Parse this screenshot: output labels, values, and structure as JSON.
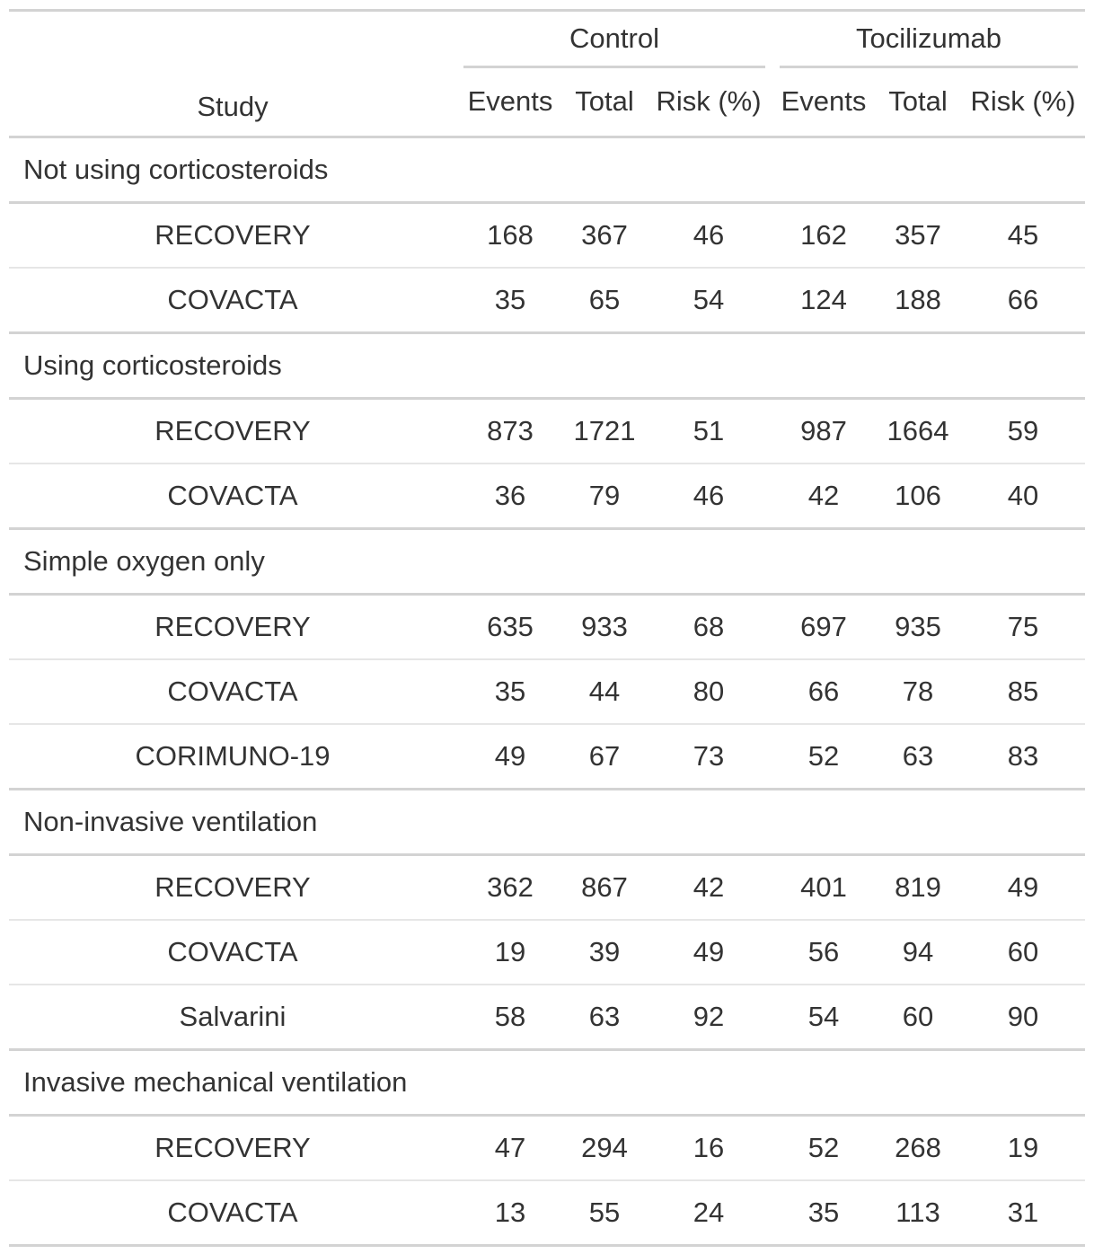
{
  "header": {
    "study_label": "Study",
    "spanners": [
      {
        "label": "Control"
      },
      {
        "label": "Tocilizumab"
      }
    ],
    "columns": [
      "Events",
      "Total",
      "Risk (%)",
      "Events",
      "Total",
      "Risk (%)"
    ]
  },
  "groups": [
    {
      "label": "Not using corticosteroids",
      "rows": [
        {
          "study": "RECOVERY",
          "c_events": "168",
          "c_total": "367",
          "c_risk": "46",
          "t_events": "162",
          "t_total": "357",
          "t_risk": "45"
        },
        {
          "study": "COVACTA",
          "c_events": "35",
          "c_total": "65",
          "c_risk": "54",
          "t_events": "124",
          "t_total": "188",
          "t_risk": "66"
        }
      ]
    },
    {
      "label": "Using corticosteroids",
      "rows": [
        {
          "study": "RECOVERY",
          "c_events": "873",
          "c_total": "1721",
          "c_risk": "51",
          "t_events": "987",
          "t_total": "1664",
          "t_risk": "59"
        },
        {
          "study": "COVACTA",
          "c_events": "36",
          "c_total": "79",
          "c_risk": "46",
          "t_events": "42",
          "t_total": "106",
          "t_risk": "40"
        }
      ]
    },
    {
      "label": "Simple oxygen only",
      "rows": [
        {
          "study": "RECOVERY",
          "c_events": "635",
          "c_total": "933",
          "c_risk": "68",
          "t_events": "697",
          "t_total": "935",
          "t_risk": "75"
        },
        {
          "study": "COVACTA",
          "c_events": "35",
          "c_total": "44",
          "c_risk": "80",
          "t_events": "66",
          "t_total": "78",
          "t_risk": "85"
        },
        {
          "study": "CORIMUNO-19",
          "c_events": "49",
          "c_total": "67",
          "c_risk": "73",
          "t_events": "52",
          "t_total": "63",
          "t_risk": "83"
        }
      ]
    },
    {
      "label": "Non-invasive ventilation",
      "rows": [
        {
          "study": "RECOVERY",
          "c_events": "362",
          "c_total": "867",
          "c_risk": "42",
          "t_events": "401",
          "t_total": "819",
          "t_risk": "49"
        },
        {
          "study": "COVACTA",
          "c_events": "19",
          "c_total": "39",
          "c_risk": "49",
          "t_events": "56",
          "t_total": "94",
          "t_risk": "60"
        },
        {
          "study": "Salvarini",
          "c_events": "58",
          "c_total": "63",
          "c_risk": "92",
          "t_events": "54",
          "t_total": "60",
          "t_risk": "90"
        }
      ]
    },
    {
      "label": "Invasive mechanical ventilation",
      "rows": [
        {
          "study": "RECOVERY",
          "c_events": "47",
          "c_total": "294",
          "c_risk": "16",
          "t_events": "52",
          "t_total": "268",
          "t_risk": "19"
        },
        {
          "study": "COVACTA",
          "c_events": "13",
          "c_total": "55",
          "c_risk": "24",
          "t_events": "35",
          "t_total": "113",
          "t_risk": "31"
        }
      ]
    }
  ]
}
